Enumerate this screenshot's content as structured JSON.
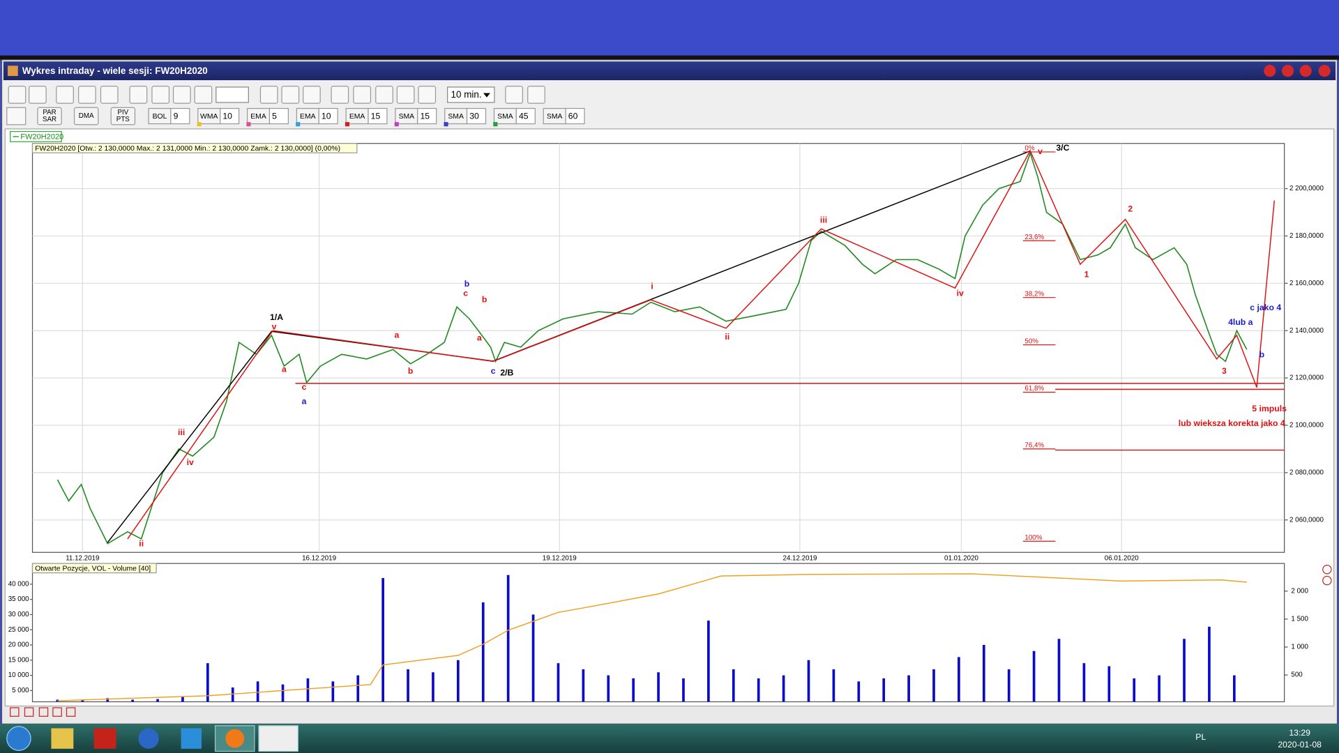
{
  "window": {
    "title": "Wykres intraday -  wiele sesji: FW20H2020"
  },
  "toolbar": {
    "interval": "10 min.",
    "buttons": [
      {
        "lines": [
          "PAR",
          "SAR"
        ]
      },
      {
        "lines": [
          "DMA"
        ]
      },
      {
        "lines": [
          "PIV",
          "PTS"
        ]
      }
    ],
    "indicators": [
      {
        "name": "BOL",
        "value": "9"
      },
      {
        "name": "WMA",
        "value": "10"
      },
      {
        "name": "EMA",
        "value": "5"
      },
      {
        "name": "EMA",
        "value": "10"
      },
      {
        "name": "EMA",
        "value": "15"
      },
      {
        "name": "SMA",
        "value": "15"
      },
      {
        "name": "SMA",
        "value": "30"
      },
      {
        "name": "SMA",
        "value": "45"
      },
      {
        "name": "SMA",
        "value": "60"
      }
    ]
  },
  "chart_data": [
    {
      "type": "line",
      "title": "FW20H2020 [Otw.: 2 130,0000  Max.: 2 131,0000  Min.: 2 130,0000  Zamk.: 2 130,0000] (0,00%)",
      "xlim": [
        0,
        100
      ],
      "xticks": [
        {
          "value": 4.0,
          "label": "11.12.2019"
        },
        {
          "value": 22.9,
          "label": "16.12.2019"
        },
        {
          "value": 42.1,
          "label": "19.12.2019"
        },
        {
          "value": 61.3,
          "label": "24.12.2019"
        },
        {
          "value": 74.2,
          "label": "01.01.2020"
        },
        {
          "value": 87.0,
          "label": "06.01.2020"
        }
      ],
      "ylim": [
        2046.3,
        2219.1
      ],
      "yticks": [
        {
          "value": 2060,
          "label": "2 060,0000"
        },
        {
          "value": 2080,
          "label": "2 080,0000"
        },
        {
          "value": 2100,
          "label": "2 100,0000"
        },
        {
          "value": 2120,
          "label": "2 120,0000"
        },
        {
          "value": 2140,
          "label": "2 140,0000"
        },
        {
          "value": 2160,
          "label": "2 160,0000"
        },
        {
          "value": 2180,
          "label": "2 180,0000"
        },
        {
          "value": 2200,
          "label": "2 200,0000"
        }
      ],
      "grid": true,
      "series": [
        {
          "name": "FW20H2020",
          "color": "#1f8a1f",
          "x": [
            2.0,
            2.9,
            3.9,
            4.6,
            6.0,
            7.6,
            8.7,
            10.4,
            11.7,
            12.8,
            14.5,
            15.5,
            16.5,
            17.9,
            19.1,
            20.1,
            21.3,
            21.9,
            23.0,
            24.7,
            26.7,
            28.8,
            30.2,
            31.5,
            32.9,
            33.9,
            34.9,
            35.9,
            36.6,
            37.0,
            37.7,
            39.0,
            40.4,
            42.4,
            45.2,
            47.9,
            49.4,
            51.3,
            53.3,
            55.4,
            57.4,
            60.2,
            61.2,
            62.2,
            63.0,
            64.9,
            66.3,
            67.3,
            69.0,
            70.7,
            72.4,
            73.7,
            74.5,
            75.9,
            77.2,
            78.9,
            79.7,
            80.3,
            81.0,
            82.3,
            83.7,
            85.1,
            86.1,
            87.3,
            88.1,
            89.5,
            91.2,
            92.2,
            92.9,
            93.9,
            94.6,
            95.3,
            96.2,
            97.0
          ],
          "values": [
            2077,
            2068,
            2075,
            2065,
            2050,
            2055,
            2052,
            2080,
            2090,
            2087,
            2095,
            2110,
            2135,
            2130,
            2138,
            2125,
            2130,
            2118,
            2125,
            2130,
            2128,
            2132,
            2126,
            2130,
            2135,
            2150,
            2145,
            2138,
            2133,
            2127,
            2135,
            2133,
            2140,
            2145,
            2148,
            2147,
            2152,
            2148,
            2150,
            2144,
            2146,
            2149,
            2160,
            2178,
            2182,
            2176,
            2168,
            2164,
            2170,
            2170,
            2166,
            2162,
            2180,
            2193,
            2200,
            2203,
            2215,
            2205,
            2190,
            2185,
            2170,
            2172,
            2175,
            2185,
            2175,
            2170,
            2175,
            2168,
            2155,
            2140,
            2130,
            2127,
            2140,
            2132
          ]
        }
      ],
      "trend_lines": [
        {
          "color": "#000000",
          "x": [
            6.0,
            19.1,
            36.8,
            79.7
          ],
          "values": [
            2050.5,
            2139.7,
            2127.1,
            2215.9
          ]
        },
        {
          "color": "#e01010",
          "x": [
            7.6,
            19.2,
            36.8,
            49.4,
            55.4,
            63.0,
            73.7,
            79.7,
            83.7,
            87.3,
            94.6,
            96.2,
            97.8,
            99.2
          ],
          "values": [
            2052,
            2140,
            2127,
            2153,
            2141,
            2183,
            2158,
            2216,
            2168,
            2187,
            2128,
            2138,
            2116,
            2195
          ]
        }
      ],
      "levels": [
        {
          "color": "#e01010",
          "x": [
            21.0,
            100.0
          ],
          "values": [
            2117.7,
            2117.7
          ]
        },
        {
          "color": "#e01010",
          "x": [
            81.7,
            100.0
          ],
          "values": [
            2115.2,
            2115.2
          ]
        },
        {
          "color": "#e01010",
          "x": [
            81.7,
            100.0
          ],
          "values": [
            2089.5,
            2089.5
          ]
        }
      ],
      "fibonacci": [
        {
          "label": "0%",
          "value": 2215.5
        },
        {
          "label": "23,6%",
          "value": 2178
        },
        {
          "label": "38,2%",
          "value": 2154
        },
        {
          "label": "50%",
          "value": 2134
        },
        {
          "label": "61,8%",
          "value": 2114
        },
        {
          "label": "76,4%",
          "value": 2090
        },
        {
          "label": "100%",
          "value": 2051
        }
      ],
      "annotations": [
        {
          "text": "1/A",
          "x": 19.5,
          "y": 2145.5,
          "color": "#000000"
        },
        {
          "text": "v",
          "x": 19.3,
          "y": 2141.5,
          "color": "#e01010"
        },
        {
          "text": "2/B",
          "x": 37.9,
          "y": 2122,
          "color": "#000000"
        },
        {
          "text": "3/C",
          "x": 82.3,
          "y": 2217,
          "color": "#000000"
        },
        {
          "text": "v",
          "x": 80.5,
          "y": 2215.5,
          "color": "#e01010"
        },
        {
          "text": "iii",
          "x": 63.2,
          "y": 2186.6,
          "color": "#e01010"
        },
        {
          "text": "iv",
          "x": 74.1,
          "y": 2155.6,
          "color": "#e01010"
        },
        {
          "text": "ii",
          "x": 55.5,
          "y": 2137.2,
          "color": "#e01010"
        },
        {
          "text": "i",
          "x": 49.5,
          "y": 2158.5,
          "color": "#e01010"
        },
        {
          "text": "iii",
          "x": 11.9,
          "y": 2096.8,
          "color": "#e01010"
        },
        {
          "text": "iv",
          "x": 12.6,
          "y": 2084.1,
          "color": "#e01010"
        },
        {
          "text": "ii",
          "x": 8.7,
          "y": 2049.8,
          "color": "#e01010"
        },
        {
          "text": "a",
          "x": 21.7,
          "y": 2110,
          "color": "#1a1acc"
        },
        {
          "text": "c",
          "x": 21.7,
          "y": 2116,
          "color": "#e01010"
        },
        {
          "text": "a",
          "x": 20.1,
          "y": 2123.5,
          "color": "#e01010"
        },
        {
          "text": "b",
          "x": 34.7,
          "y": 2159.6,
          "color": "#1a1acc"
        },
        {
          "text": "c",
          "x": 34.6,
          "y": 2155.6,
          "color": "#e01010"
        },
        {
          "text": "b",
          "x": 36.1,
          "y": 2153,
          "color": "#e01010"
        },
        {
          "text": "a",
          "x": 35.7,
          "y": 2136.8,
          "color": "#e01010"
        },
        {
          "text": "c",
          "x": 36.8,
          "y": 2122.7,
          "color": "#1a1acc"
        },
        {
          "text": "a",
          "x": 29.1,
          "y": 2137.9,
          "color": "#e01010"
        },
        {
          "text": "b",
          "x": 30.2,
          "y": 2122.7,
          "color": "#e01010"
        },
        {
          "text": "1",
          "x": 84.2,
          "y": 2163.5,
          "color": "#e01010"
        },
        {
          "text": "2",
          "x": 87.7,
          "y": 2191.3,
          "color": "#e01010"
        },
        {
          "text": "3",
          "x": 95.2,
          "y": 2122.7,
          "color": "#e01010"
        },
        {
          "text": "4lub a",
          "x": 96.5,
          "y": 2143.3,
          "color": "#1a1acc"
        },
        {
          "text": "c jako 4",
          "x": 98.5,
          "y": 2149.5,
          "color": "#1a1acc"
        },
        {
          "text": "b",
          "x": 98.2,
          "y": 2129.6,
          "color": "#1a1acc"
        },
        {
          "text": "5 impuls",
          "x": 98.8,
          "y": 2106.9,
          "color": "#e01010"
        },
        {
          "text": "lub wieksza korekta jako 4",
          "x": 95.8,
          "y": 2100.7,
          "color": "#e01010"
        }
      ]
    },
    {
      "type": "bar",
      "title": "Otwarte Pozycje, VOL - Volume [40]",
      "xlim": [
        0,
        100
      ],
      "ylim": [
        1300,
        46800
      ],
      "yticks": [
        {
          "value": 5000,
          "label": "5 000"
        },
        {
          "value": 10000,
          "label": "10 000"
        },
        {
          "value": 15000,
          "label": "15 000"
        },
        {
          "value": 20000,
          "label": "20 000"
        },
        {
          "value": 25000,
          "label": "25 000"
        },
        {
          "value": 30000,
          "label": "30 000"
        },
        {
          "value": 35000,
          "label": "35 000"
        },
        {
          "value": 40000,
          "label": "40 000"
        }
      ],
      "y2lim": [
        21,
        2495
      ],
      "y2ticks": [
        500,
        {
          "value": 1000,
          "label": "1 000"
        },
        {
          "value": 1500,
          "label": "1 500"
        },
        {
          "value": 2000,
          "label": "2 000"
        }
      ],
      "series": [
        {
          "color": "#0a0acc",
          "x": [
            2,
            4,
            6,
            8,
            10,
            12,
            14,
            16,
            18,
            20,
            22,
            24,
            26,
            28,
            30,
            32,
            34,
            36,
            38,
            40,
            42,
            44,
            46,
            48,
            50,
            52,
            54,
            56,
            58,
            60,
            62,
            64,
            66,
            68,
            70,
            72,
            74,
            76,
            78,
            80,
            82,
            84,
            86,
            88,
            90,
            92,
            94,
            96
          ],
          "values": [
            2000,
            1800,
            2500,
            2000,
            2200,
            3000,
            14000,
            6000,
            8000,
            7000,
            9000,
            8000,
            10000,
            42000,
            12000,
            11000,
            15000,
            34000,
            43000,
            30000,
            14000,
            12000,
            10000,
            9000,
            11000,
            9000,
            28000,
            12000,
            9000,
            10000,
            15000,
            12000,
            8000,
            9000,
            10000,
            12000,
            16000,
            20000,
            12000,
            18000,
            22000,
            14000,
            13000,
            9000,
            10000,
            22000,
            26000,
            10000
          ]
        },
        {
          "color": "#f0a020",
          "axis": "y2",
          "x": [
            2,
            14,
            27,
            28,
            34,
            36,
            38,
            42,
            44,
            50,
            55,
            62,
            75,
            87,
            95,
            97
          ],
          "values": [
            40,
            130,
            330,
            680,
            850,
            1050,
            1300,
            1620,
            1700,
            1950,
            2270,
            2300,
            2310,
            2180,
            2200,
            2160
          ]
        }
      ]
    }
  ],
  "taskbar": {
    "language": "PL",
    "time": "13:29",
    "date": "2020-01-08"
  }
}
